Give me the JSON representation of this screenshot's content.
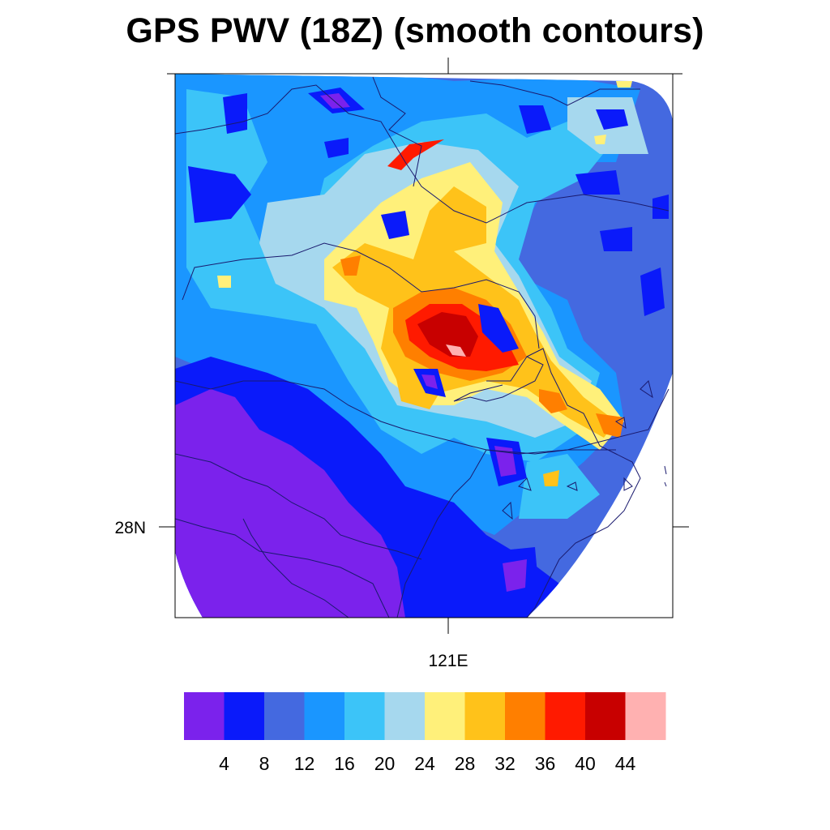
{
  "title": "GPS PWV (18Z) (smooth contours)",
  "map": {
    "x_tick_label": "121E",
    "y_tick_label": "28N",
    "field": "precipitable water vapor"
  },
  "colorbar": {
    "colors": [
      "#7b22ec",
      "#0a1afa",
      "#4469e0",
      "#1a96ff",
      "#3cc4f8",
      "#a6d8ee",
      "#fff07a",
      "#ffc21a",
      "#ff7f00",
      "#ff1a00",
      "#c80000",
      "#ffb1b1"
    ],
    "labels": [
      "4",
      "8",
      "12",
      "16",
      "20",
      "24",
      "28",
      "32",
      "36",
      "40",
      "44"
    ]
  },
  "palette": {
    "outside": "#ffffff",
    "frame": "#000000",
    "coast": "#1a1a6e"
  }
}
